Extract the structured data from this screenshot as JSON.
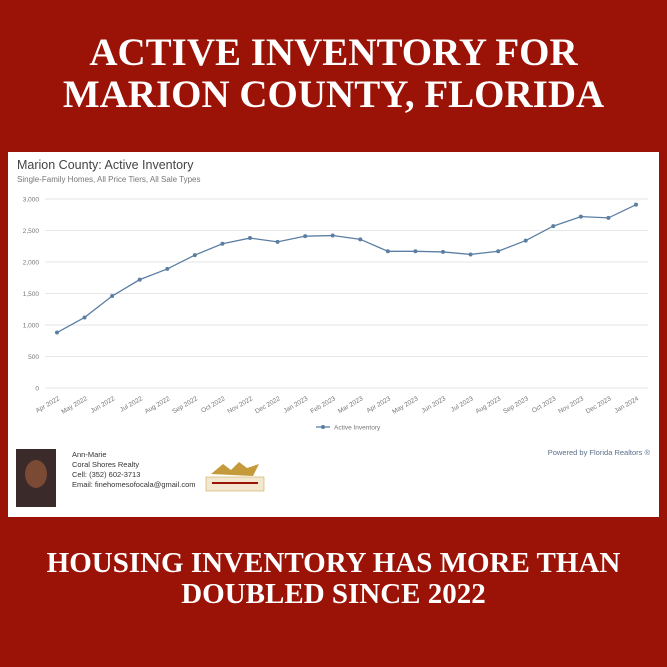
{
  "header": {
    "title_lines": [
      "ACTIVE INVENTORY FOR",
      "MARION COUNTY, FLORIDA"
    ]
  },
  "chart_data": {
    "type": "line",
    "title": "Marion County: Active Inventory",
    "subtitle": "Single-Family Homes, All Price Tiers, All Sale Types",
    "categories": [
      "Apr 2022",
      "May 2022",
      "Jun 2022",
      "Jul 2022",
      "Aug 2022",
      "Sep 2022",
      "Oct 2022",
      "Nov 2022",
      "Dec 2022",
      "Jan 2023",
      "Feb 2023",
      "Mar 2023",
      "Apr 2023",
      "May 2023",
      "Jun 2023",
      "Jul 2023",
      "Aug 2023",
      "Sep 2023",
      "Oct 2023",
      "Nov 2023",
      "Dec 2023",
      "Jan 2024"
    ],
    "series": [
      {
        "name": "Active Inventory",
        "color": "#5b7fa3",
        "values": [
          880,
          1120,
          1460,
          1720,
          1890,
          2110,
          2290,
          2380,
          2320,
          2410,
          2420,
          2360,
          2170,
          2170,
          2160,
          2120,
          2170,
          2340,
          2570,
          2720,
          2700,
          2910
        ]
      }
    ],
    "ylim": [
      0,
      3000
    ],
    "yticks": [
      0,
      500,
      {
        "value": 1000,
        "label": "1,000"
      },
      {
        "value": 1500,
        "label": "1,500"
      },
      {
        "value": 2000,
        "label": "2,000"
      },
      {
        "value": 2500,
        "label": "2,500"
      },
      {
        "value": 3000,
        "label": "3,000"
      }
    ],
    "grid": true,
    "legend": "bottom"
  },
  "agent": {
    "name": "Ann-Marie",
    "company": "Coral Shores Realty",
    "cell": "Cell: (352) 602-3713",
    "email": "Email: finehomesofocala@gmail.com",
    "powered_by": "Powered by Florida Realtors ®"
  },
  "footer": {
    "lines": [
      "HOUSING INVENTORY HAS MORE THAN",
      "DOUBLED SINCE 2022"
    ]
  }
}
